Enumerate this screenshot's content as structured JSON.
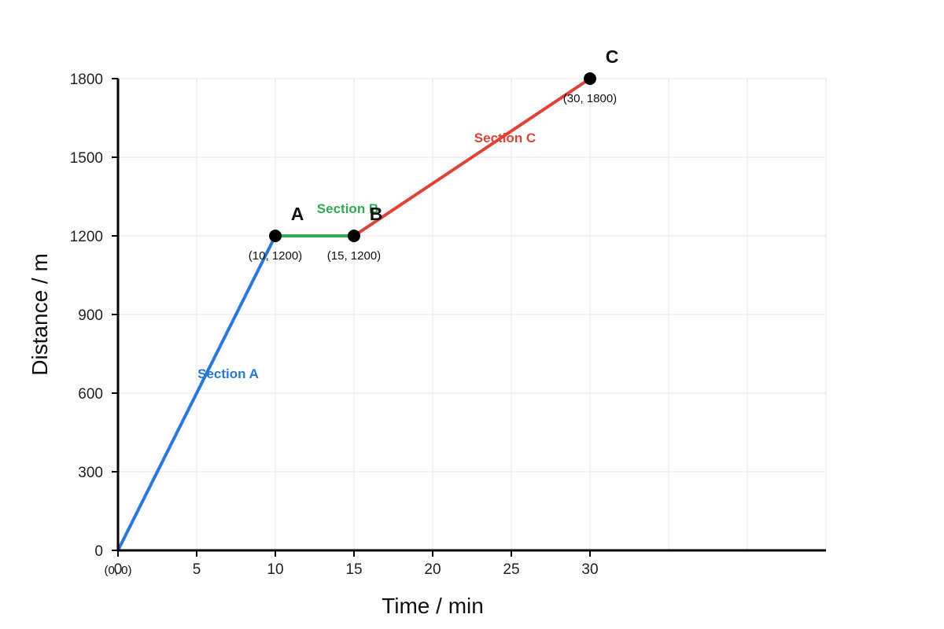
{
  "chart_data": {
    "type": "line",
    "title": "",
    "xlabel": "Time / min",
    "ylabel": "Distance / m",
    "xlim": [
      0,
      45
    ],
    "ylim": [
      0,
      1800
    ],
    "x_ticks": [
      0,
      5,
      10,
      15,
      20,
      25,
      30
    ],
    "y_ticks": [
      0,
      300,
      600,
      900,
      1200,
      1500,
      1800
    ],
    "x_grid": [
      0,
      5,
      10,
      15,
      20,
      25,
      30,
      35,
      40,
      45
    ],
    "grid": true,
    "series": [
      {
        "name": "Section A",
        "color": "#2677d9",
        "points": [
          [
            0,
            0
          ],
          [
            10,
            1200
          ]
        ],
        "label_at": [
          7,
          675
        ]
      },
      {
        "name": "Section B",
        "color": "#34a853",
        "points": [
          [
            10,
            1200
          ],
          [
            15,
            1200
          ]
        ],
        "label_at": [
          14.6,
          1305
        ]
      },
      {
        "name": "Section C",
        "color": "#db4437",
        "points": [
          [
            15,
            1200
          ],
          [
            30,
            1800
          ]
        ],
        "label_at": [
          24.6,
          1575
        ]
      }
    ],
    "points": [
      {
        "name": "",
        "x": 0,
        "y": 0,
        "coord_label": "(0, 0)",
        "marker": false
      },
      {
        "name": "A",
        "x": 10,
        "y": 1200,
        "coord_label": "(10, 1200)",
        "marker": true
      },
      {
        "name": "B",
        "x": 15,
        "y": 1200,
        "coord_label": "(15, 1200)",
        "marker": true
      },
      {
        "name": "C",
        "x": 30,
        "y": 1800,
        "coord_label": "(30, 1800)",
        "marker": true
      }
    ]
  }
}
